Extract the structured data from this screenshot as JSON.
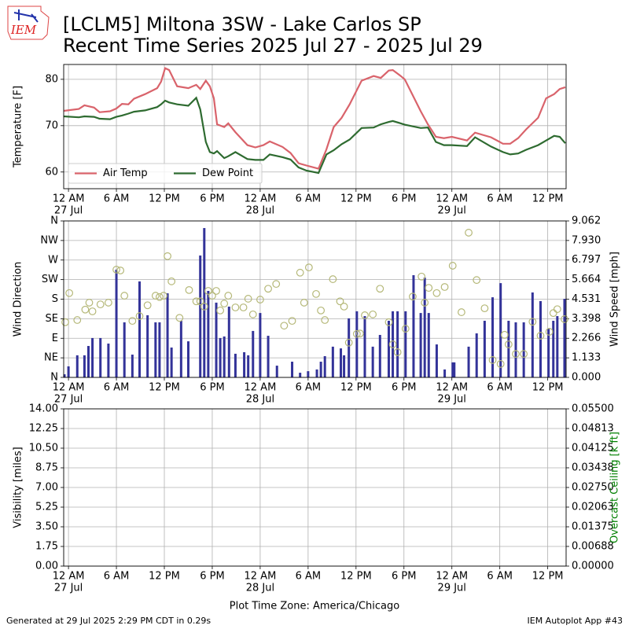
{
  "header": {
    "logo": "IEM",
    "title": "[LCLM5] Miltona 3SW - Lake Carlos SP",
    "subtitle": "Recent Time Series 2025 Jul 27 - 2025 Jul 29"
  },
  "footer": {
    "left": "Generated at 29 Jul 2025 2:29 PM CDT in 0.29s",
    "right": "IEM Autoplot App #43"
  },
  "time_axis": {
    "label": "Plot Time Zone: America/Chicago",
    "xlim": [
      -0.6,
      62.3
    ],
    "xticks": [
      {
        "value": 0,
        "label": "12 AM"
      },
      {
        "value": 6,
        "label": "6 AM"
      },
      {
        "value": 12,
        "label": "12 PM"
      },
      {
        "value": 18,
        "label": "6 PM"
      },
      {
        "value": 24,
        "label": "12 AM"
      },
      {
        "value": 30,
        "label": "6 AM"
      },
      {
        "value": 36,
        "label": "12 PM"
      },
      {
        "value": 42,
        "label": "6 PM"
      },
      {
        "value": 48,
        "label": "12 AM"
      },
      {
        "value": 54,
        "label": "6 AM"
      },
      {
        "value": 60,
        "label": "12 PM"
      }
    ],
    "dates": [
      {
        "value": 0,
        "label": "27 Jul"
      },
      {
        "value": 24,
        "label": "28 Jul"
      },
      {
        "value": 48,
        "label": "29 Jul"
      }
    ]
  },
  "chart_data": [
    {
      "type": "line",
      "ylabel": "Temperature [F]",
      "ylim": [
        56.4,
        83.2
      ],
      "yticks": [
        60,
        70,
        80
      ],
      "grid": true,
      "legend": "lower left",
      "x": [
        -0.6,
        1.3,
        2.0,
        3.2,
        3.9,
        5.2,
        6.0,
        6.7,
        7.5,
        8.2,
        9.6,
        11.1,
        11.6,
        12.1,
        12.6,
        13.6,
        15.0,
        16.0,
        16.5,
        17.2,
        17.7,
        18.2,
        18.6,
        19.5,
        20.0,
        20.9,
        22.4,
        23.4,
        24.4,
        25.2,
        26.8,
        27.8,
        28.8,
        29.8,
        31.3,
        32.3,
        33.2,
        34.2,
        35.2,
        36.7,
        38.2,
        39.1,
        40.1,
        40.6,
        41.6,
        42.1,
        44.1,
        45.0,
        46.0,
        47.0,
        48.0,
        49.9,
        50.9,
        52.9,
        54.4,
        55.3,
        56.3,
        57.3,
        58.8,
        59.8,
        60.8,
        61.5,
        62.2
      ],
      "series": [
        {
          "name": "Air Temp",
          "color": "#d9636b",
          "values": [
            73.2,
            73.6,
            74.4,
            73.9,
            72.9,
            73.1,
            73.7,
            74.7,
            74.6,
            75.8,
            76.8,
            78.1,
            79.5,
            82.4,
            82.0,
            78.5,
            78.1,
            78.8,
            77.9,
            79.7,
            78.5,
            75.9,
            70.3,
            69.7,
            70.5,
            68.6,
            65.8,
            65.3,
            65.8,
            66.6,
            65.4,
            64.1,
            61.9,
            61.4,
            60.7,
            64.9,
            69.7,
            71.7,
            74.6,
            79.7,
            80.7,
            80.3,
            81.9,
            82.0,
            80.7,
            80.0,
            73.1,
            70.3,
            67.6,
            67.3,
            67.6,
            66.8,
            68.5,
            67.5,
            66.1,
            66.1,
            67.3,
            69.2,
            71.7,
            75.9,
            76.8,
            77.9,
            78.3
          ]
        },
        {
          "name": "Dew Point",
          "color": "#2e6b30",
          "values": [
            72.0,
            71.8,
            72.0,
            71.9,
            71.5,
            71.4,
            71.9,
            72.2,
            72.6,
            73.0,
            73.3,
            74.0,
            74.6,
            75.4,
            75.0,
            74.6,
            74.3,
            76.0,
            73.5,
            66.5,
            64.3,
            64.0,
            64.5,
            63.0,
            63.4,
            64.3,
            62.8,
            62.6,
            62.6,
            63.8,
            63.2,
            62.7,
            61.0,
            60.3,
            59.8,
            63.8,
            64.7,
            66.0,
            67.0,
            69.5,
            69.6,
            70.3,
            70.8,
            71.0,
            70.5,
            70.2,
            69.5,
            69.6,
            66.5,
            65.8,
            65.8,
            65.6,
            67.5,
            65.5,
            64.3,
            63.8,
            64.0,
            64.8,
            65.8,
            66.8,
            67.8,
            67.6,
            66.2
          ]
        }
      ]
    },
    {
      "type": "combo",
      "ylabel": "Wind Direction",
      "ylim": [
        0,
        360
      ],
      "grid": true,
      "yticks": [
        {
          "value": 0,
          "label": "N"
        },
        {
          "value": 45,
          "label": "NE"
        },
        {
          "value": 90,
          "label": "E"
        },
        {
          "value": 135,
          "label": "SE"
        },
        {
          "value": 180,
          "label": "S"
        },
        {
          "value": 225,
          "label": "SW"
        },
        {
          "value": 270,
          "label": "W"
        },
        {
          "value": 315,
          "label": "NW"
        },
        {
          "value": 360,
          "label": "N"
        }
      ],
      "y2label": "Wind Speed [mph]",
      "y2lim": [
        0,
        9.062
      ],
      "y2ticks": [
        {
          "value": 0,
          "label": "0.000"
        },
        1.133,
        2.266,
        3.398,
        4.531,
        5.664,
        6.797,
        {
          "value": 7.93,
          "label": "7.930"
        },
        9.062
      ],
      "series": [
        {
          "kind": "bar",
          "axis": "y2",
          "color": "#333399",
          "x": [
            -0.5,
            0,
            1.1,
            2.0,
            2.5,
            3.0,
            4.0,
            5.0,
            6.0,
            7.0,
            8.0,
            8.9,
            9.9,
            10.9,
            11.4,
            12.4,
            12.9,
            14.1,
            15.0,
            16.5,
            17.0,
            17.5,
            18.5,
            19.0,
            19.5,
            20.1,
            20.9,
            22.0,
            22.5,
            23.1,
            24.0,
            25.0,
            26.1,
            28.0,
            29.0,
            30.0,
            31.1,
            31.6,
            32.1,
            33.1,
            34.1,
            34.5,
            35.1,
            36.1,
            37.1,
            38.1,
            39.0,
            40.1,
            40.6,
            41.2,
            42.2,
            43.2,
            44.1,
            44.6,
            45.1,
            46.1,
            47.1,
            48.1,
            48.3,
            50.1,
            51.1,
            52.1,
            53.1,
            54.1,
            55.1,
            56.0,
            57.0,
            58.1,
            59.1,
            60.1,
            60.7,
            61.2,
            62.1
          ],
          "values": [
            0.18,
            0.64,
            1.28,
            1.28,
            1.82,
            2.28,
            2.28,
            1.96,
            6.24,
            3.19,
            1.32,
            5.56,
            3.6,
            3.19,
            3.19,
            4.87,
            1.73,
            3.28,
            2.09,
            7.06,
            8.65,
            5.01,
            4.33,
            2.28,
            2.37,
            4.1,
            1.37,
            1.46,
            1.28,
            2.69,
            3.73,
            2.41,
            0.68,
            0.91,
            0.27,
            0.36,
            0.46,
            0.91,
            1.23,
            1.78,
            1.68,
            1.28,
            3.42,
            3.83,
            3.55,
            1.78,
            2.46,
            3.28,
            3.83,
            3.83,
            3.83,
            5.92,
            3.73,
            5.78,
            3.73,
            1.91,
            0.46,
            0.87,
            0.87,
            1.78,
            2.55,
            3.28,
            4.64,
            5.46,
            3.28,
            3.19,
            3.19,
            4.92,
            4.42,
            2.82,
            3.28,
            3.55,
            4.55
          ]
        },
        {
          "kind": "scatter",
          "axis": "y",
          "color": "#b5b878",
          "x": [
            -0.4,
            0.1,
            1.1,
            2.1,
            2.6,
            3.0,
            4.0,
            5.0,
            6.0,
            6.5,
            7.0,
            8.0,
            8.9,
            9.9,
            10.9,
            11.4,
            11.9,
            12.4,
            12.9,
            13.9,
            15.1,
            16.0,
            16.5,
            17.0,
            17.5,
            18.0,
            18.5,
            19.0,
            19.5,
            20.0,
            20.9,
            21.9,
            22.5,
            23.1,
            24.0,
            25.0,
            26.0,
            27.0,
            28.0,
            29.0,
            29.5,
            30.1,
            31.0,
            31.6,
            32.1,
            33.1,
            34.0,
            34.5,
            35.1,
            36.1,
            36.5,
            37.1,
            38.1,
            39.0,
            40.1,
            40.6,
            41.2,
            42.2,
            43.1,
            44.2,
            44.6,
            45.1,
            46.1,
            47.1,
            48.1,
            49.2,
            50.1,
            51.1,
            52.1,
            53.1,
            54.1,
            54.6,
            55.1,
            56.0,
            57.0,
            58.1,
            59.1,
            60.2,
            60.7,
            61.2,
            62.1
          ],
          "values": [
            127,
            194,
            132,
            156,
            172,
            152,
            168,
            172,
            248,
            246,
            188,
            130,
            141,
            166,
            188,
            185,
            188,
            279,
            221,
            137,
            201,
            175,
            175,
            163,
            199,
            188,
            199,
            154,
            170,
            188,
            161,
            161,
            181,
            145,
            179,
            204,
            215,
            119,
            130,
            241,
            172,
            253,
            192,
            154,
            132,
            226,
            175,
            163,
            80,
            100,
            101,
            143,
            145,
            204,
            127,
            76,
            58,
            112,
            186,
            232,
            172,
            206,
            194,
            208,
            257,
            150,
            333,
            224,
            159,
            40,
            31,
            98,
            76,
            54,
            54,
            128,
            96,
            105,
            148,
            157,
            134
          ]
        }
      ]
    },
    {
      "type": "line",
      "ylabel": "Visibility [miles]",
      "ylim": [
        0,
        14
      ],
      "grid": true,
      "yticks": [
        {
          "value": 0,
          "label": "0.00"
        },
        1.75,
        {
          "value": 3.5,
          "label": "3.50"
        },
        5.25,
        {
          "value": 7,
          "label": "7.00"
        },
        8.75,
        {
          "value": 10.5,
          "label": "10.50"
        },
        12.25,
        {
          "value": 14,
          "label": "14.00"
        }
      ],
      "y2label": "Overcast Ceiling [k ft]",
      "y2label_color": "#008000",
      "y2lim": [
        0,
        0.055
      ],
      "y2ticks": [
        {
          "value": 0,
          "label": "0.00000"
        },
        0.00688,
        0.01375,
        0.02063,
        {
          "value": 0.0275,
          "label": "0.02750"
        },
        0.03438,
        0.04125,
        0.04813,
        {
          "value": 0.055,
          "label": "0.05500"
        }
      ],
      "series": []
    }
  ]
}
